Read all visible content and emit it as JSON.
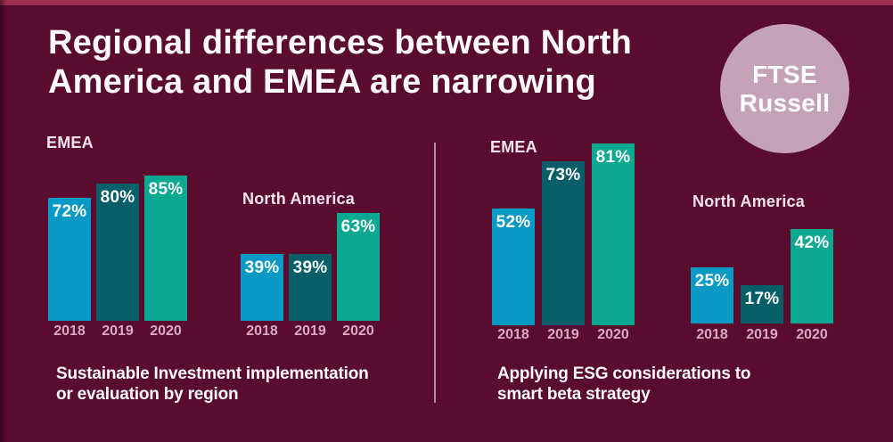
{
  "title": {
    "line1": "Regional differences between North",
    "line2": "America and EMEA are narrowing"
  },
  "logo": {
    "line1": "FTSE",
    "line2": "Russell"
  },
  "colors": {
    "background": "#5a0c2f",
    "top_stripe": "#9c3054",
    "bar_2018": "#0899c4",
    "bar_2019": "#065e68",
    "bar_2020": "#0ba892",
    "year_label": "#d9a9c6",
    "logo_circle": "#c4a3b7",
    "divider": "#b389a2",
    "text": "#ffffff"
  },
  "chart_data": [
    {
      "type": "bar",
      "title": "Sustainable Investment implementation or evaluation by region",
      "title_lines": [
        "Sustainable Investment implementation",
        "or evaluation by region"
      ],
      "unit": "%",
      "categories": [
        "2018",
        "2019",
        "2020"
      ],
      "series": [
        {
          "name": "EMEA",
          "values": [
            72,
            80,
            85
          ]
        },
        {
          "name": "North America",
          "values": [
            39,
            39,
            63
          ]
        }
      ],
      "ylim": [
        0,
        100
      ],
      "value_labels": "inside-top",
      "legend": "none",
      "grid": false
    },
    {
      "type": "bar",
      "title": "Applying ESG considerations to smart beta strategy",
      "title_lines": [
        "Applying ESG considerations to",
        "smart beta strategy"
      ],
      "unit": "%",
      "categories": [
        "2018",
        "2019",
        "2020"
      ],
      "series": [
        {
          "name": "EMEA",
          "values": [
            52,
            73,
            81
          ]
        },
        {
          "name": "North America",
          "values": [
            25,
            17,
            42
          ]
        }
      ],
      "ylim": [
        0,
        100
      ],
      "value_labels": "inside-top",
      "legend": "none",
      "grid": false
    }
  ]
}
